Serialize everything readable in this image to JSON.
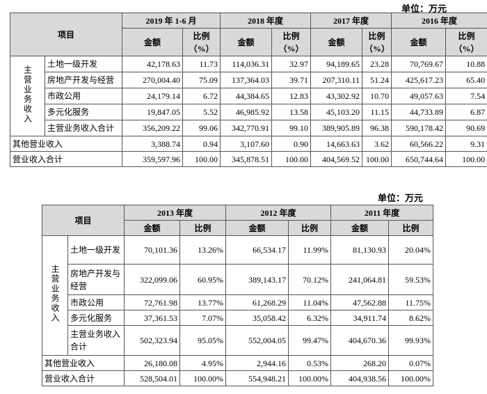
{
  "tables": [
    {
      "unit": "单位：万元",
      "header": {
        "item": "项目",
        "periods": [
          "2019 年 1-6 月",
          "2018 年度",
          "2017 年度",
          "2016 年度"
        ],
        "subheaders": [
          "金额",
          "比例（%）",
          "金额",
          "比例（%）",
          "金额",
          "比例（%）",
          "金额",
          "比例（%）"
        ]
      },
      "group": "主营业务收入",
      "group_rows": [
        {
          "label": "土地一级开发",
          "cells": [
            "42,178.63",
            "11.73",
            "114,036.31",
            "32.97",
            "94,189.65",
            "23.28",
            "70,769.67",
            "10.88"
          ]
        },
        {
          "label": "房地产开发与经营",
          "cells": [
            "270,004.40",
            "75.09",
            "137,364.03",
            "39.71",
            "207,310.11",
            "51.24",
            "425,617.23",
            "65.40"
          ]
        },
        {
          "label": "市政公用",
          "cells": [
            "24,179.14",
            "6.72",
            "44,384.65",
            "12.83",
            "43,302.92",
            "10.70",
            "49,057.63",
            "7.54"
          ]
        },
        {
          "label": "多元化服务",
          "cells": [
            "19,847.05",
            "5.52",
            "46,985.92",
            "13.58",
            "45,103.20",
            "11.15",
            "44,733.89",
            "6.87"
          ]
        },
        {
          "label": "主营业务收入合计",
          "cells": [
            "356,209.22",
            "99.06",
            "342,770.91",
            "99.10",
            "389,905.89",
            "96.38",
            "590,178.42",
            "90.69"
          ]
        }
      ],
      "rows": [
        {
          "label": "其他营业收入",
          "cells": [
            "3,388.74",
            "0.94",
            "3,107.60",
            "0.90",
            "14,663.63",
            "3.62",
            "60,566.22",
            "9.31"
          ]
        },
        {
          "label": "营业收入合计",
          "cells": [
            "359,597.96",
            "100.00",
            "345,878.51",
            "100.00",
            "404,569.52",
            "100.00",
            "650,744.64",
            "100.00"
          ]
        }
      ]
    },
    {
      "unit": "单位：万元",
      "header": {
        "item": "项目",
        "periods": [
          "2013 年度",
          "2012 年度",
          "2011 年度"
        ],
        "subheaders": [
          "金额",
          "比例",
          "金额",
          "比例",
          "金额",
          "比例"
        ]
      },
      "group": "主营业务收入",
      "group_rows": [
        {
          "label": "土地一级开发",
          "cells": [
            "70,101.36",
            "13.26%",
            "66,534.17",
            "11.99%",
            "81,130.93",
            "20.04%"
          ]
        },
        {
          "label": "房地产开发与经营",
          "cells": [
            "322,099.06",
            "60.95%",
            "389,143.17",
            "70.12%",
            "241,064.81",
            "59.53%"
          ]
        },
        {
          "label": "市政公用",
          "cells": [
            "72,761.98",
            "13.77%",
            "61,268.29",
            "11.04%",
            "47,562.88",
            "11.75%"
          ]
        },
        {
          "label": "多元化服务",
          "cells": [
            "37,361.53",
            "7.07%",
            "35,058.42",
            "6.32%",
            "34,911.74",
            "8.62%"
          ]
        },
        {
          "label": "主营业务收入合计",
          "cells": [
            "502,323.94",
            "95.05%",
            "552,004.05",
            "99.47%",
            "404,670.36",
            "99.93%"
          ]
        }
      ],
      "rows": [
        {
          "label": "其他营业收入",
          "cells": [
            "26,180.08",
            "4.95%",
            "2,944.16",
            "0.53%",
            "268.20",
            "0.07%"
          ]
        },
        {
          "label": "营业收入合计",
          "cells": [
            "528,504.01",
            "100.00%",
            "554,948.21",
            "100.00%",
            "404,938.56",
            "100.00%"
          ]
        }
      ]
    }
  ]
}
